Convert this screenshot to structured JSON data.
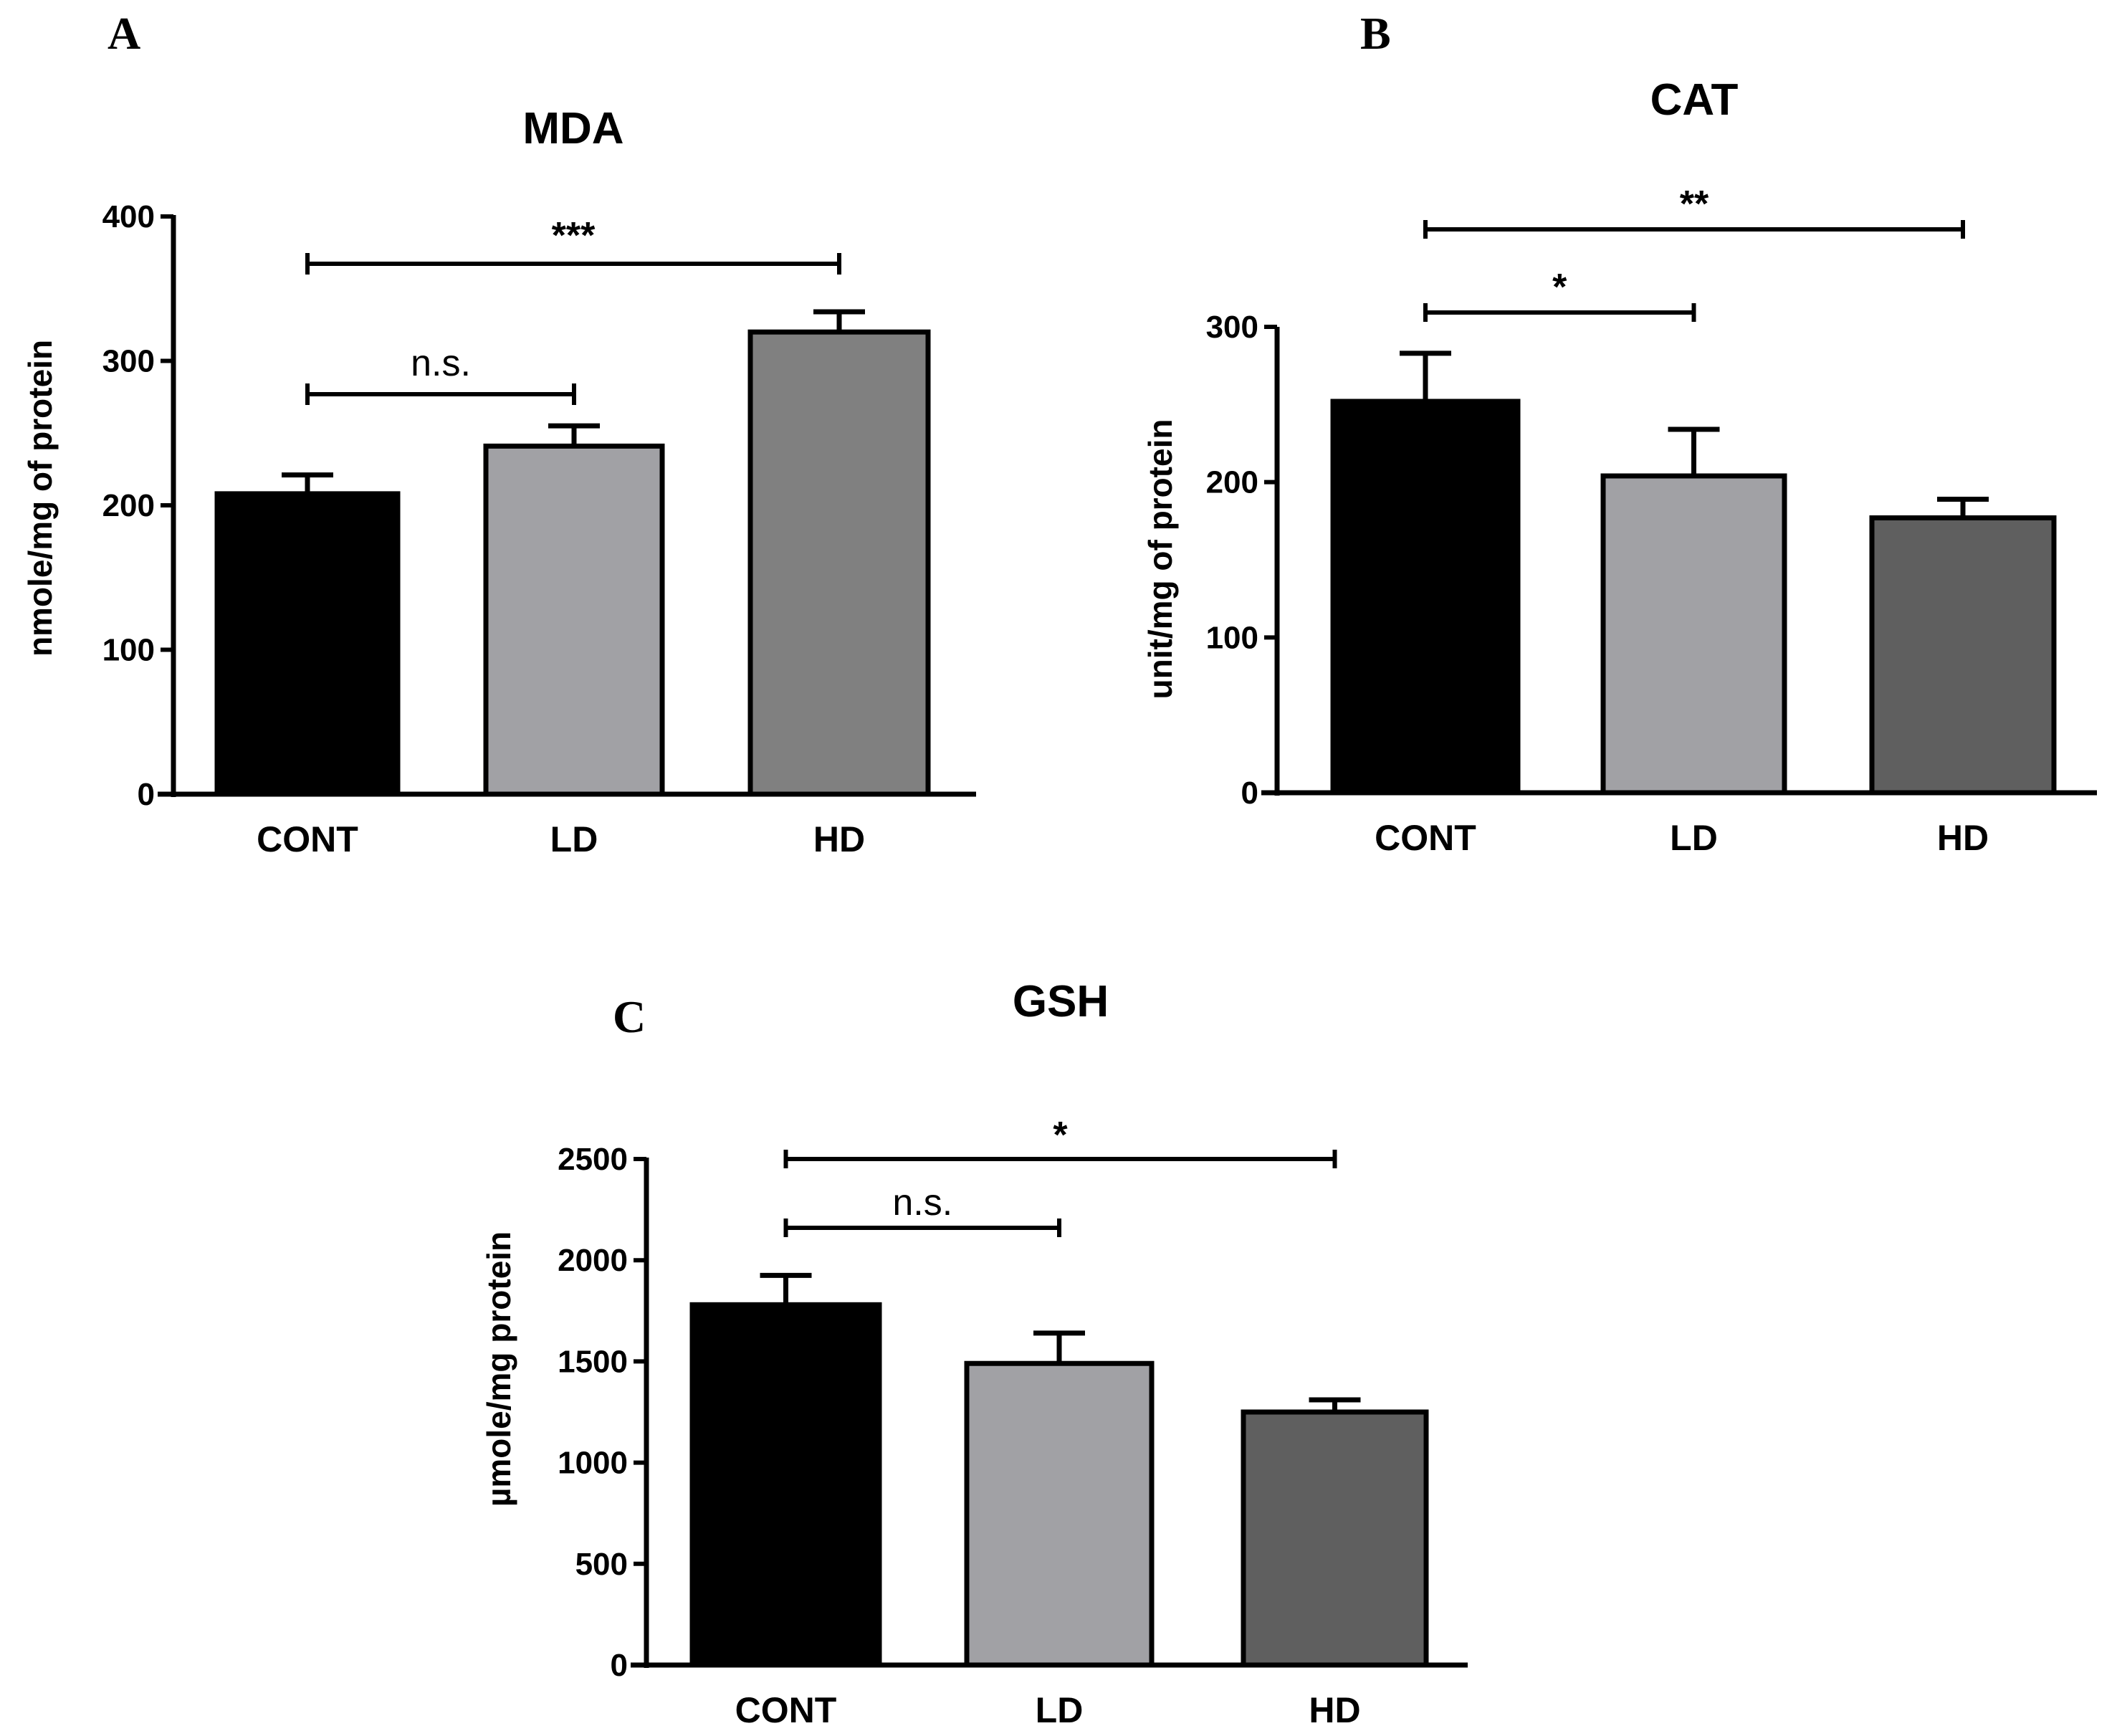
{
  "chart_data": [
    {
      "panel": "A",
      "type": "bar",
      "title": "MDA",
      "xlabel": "",
      "ylabel": "nmole/mg of protein",
      "categories": [
        "CONT",
        "LD",
        "HD"
      ],
      "values": [
        208,
        241,
        320
      ],
      "errors": [
        13,
        14,
        14
      ],
      "colors": [
        "#000000",
        "#a1a1a5",
        "#808080"
      ],
      "ylim": [
        0,
        400
      ],
      "yticks": [
        "0",
        "100",
        "200",
        "300",
        "400"
      ],
      "significance": [
        {
          "from": "CONT",
          "to": "LD",
          "label": "n.s."
        },
        {
          "from": "CONT",
          "to": "HD",
          "label": "***"
        }
      ]
    },
    {
      "panel": "B",
      "type": "bar",
      "title": "CAT",
      "xlabel": "",
      "ylabel": "unit/mg of protein",
      "categories": [
        "CONT",
        "LD",
        "HD"
      ],
      "values": [
        252,
        204,
        177
      ],
      "errors": [
        31,
        30,
        12
      ],
      "colors": [
        "#000000",
        "#a1a1a5",
        "#5f5f5f"
      ],
      "ylim": [
        0,
        300
      ],
      "yticks": [
        "0",
        "100",
        "200",
        "300"
      ],
      "significance": [
        {
          "from": "CONT",
          "to": "LD",
          "label": "*"
        },
        {
          "from": "CONT",
          "to": "HD",
          "label": "**"
        }
      ]
    },
    {
      "panel": "C",
      "type": "bar",
      "title": "GSH",
      "xlabel": "",
      "ylabel": "µmole/mg protein",
      "categories": [
        "CONT",
        "LD",
        "HD"
      ],
      "values": [
        1780,
        1490,
        1250
      ],
      "errors": [
        145,
        150,
        60
      ],
      "colors": [
        "#000000",
        "#a1a1a5",
        "#5f5f5f"
      ],
      "ylim": [
        0,
        2500
      ],
      "yticks": [
        "0",
        "500",
        "1000",
        "1500",
        "2000",
        "2500"
      ],
      "significance": [
        {
          "from": "CONT",
          "to": "LD",
          "label": "n.s."
        },
        {
          "from": "CONT",
          "to": "HD",
          "label": "*"
        }
      ]
    }
  ]
}
